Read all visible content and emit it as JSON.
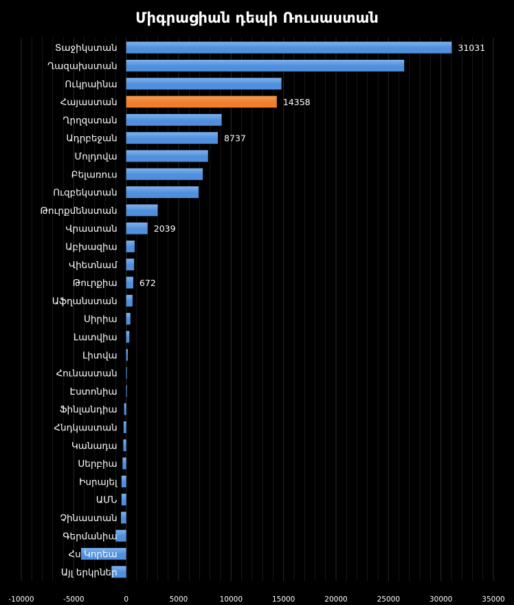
{
  "chart_data": {
    "type": "bar",
    "orientation": "horizontal",
    "title": "Միգրացիան դեպի Ռուսաստան",
    "categories": [
      "Տաջիկստան",
      "Ղազախստան",
      "Ուկրաինա",
      "Հայաստան",
      "Ղրղզստան",
      "Ադրբեջան",
      "Մոլդովա",
      "Բելառուս",
      "Ուզբեկստան",
      "Թուրքմենստան",
      "Վրաստան",
      "Աբխազիա",
      "Վիետնամ",
      "Թուրքիա",
      "Աֆղանստան",
      "Սիրիա",
      "Լատվիա",
      "Լիտվա",
      "Հունաստան",
      "Էստոնիա",
      "Ֆինլանդիա",
      "Հնդկաստան",
      "Կանադա",
      "Սերբիա",
      "Իսրայել",
      "ԱՄՆ",
      "Չինաստան",
      "Գերմանիա",
      "Հս Կորեա",
      "Այլ երկրներ"
    ],
    "values": [
      31031,
      26500,
      14800,
      14358,
      9100,
      8737,
      7800,
      7300,
      6900,
      3000,
      2039,
      800,
      750,
      672,
      600,
      400,
      300,
      150,
      40,
      60,
      -200,
      -250,
      -280,
      -350,
      -450,
      -450,
      -500,
      -1000,
      -4300,
      -1400
    ],
    "data_labels": {
      "0": "31031",
      "3": "14358",
      "5": "8737",
      "10": "2039",
      "13": "672"
    },
    "highlight_index": 3,
    "colors": {
      "bar": "#4f8fdc",
      "bar_light": "#7fb3ee",
      "highlight": "#ef7f2c",
      "highlight_light": "#f59a52",
      "background": "#000000",
      "text": "#ffffff",
      "grid": "#2a2a2a"
    },
    "xlim": [
      -10000,
      35000
    ],
    "xticks": [
      -10000,
      -5000,
      0,
      5000,
      10000,
      15000,
      20000,
      25000,
      30000,
      35000
    ],
    "xtick_labels": [
      "-10000",
      "-5000",
      "0",
      "5000",
      "10000",
      "15000",
      "20000",
      "25000",
      "30000",
      "35000"
    ],
    "grid": true,
    "legend": false
  }
}
